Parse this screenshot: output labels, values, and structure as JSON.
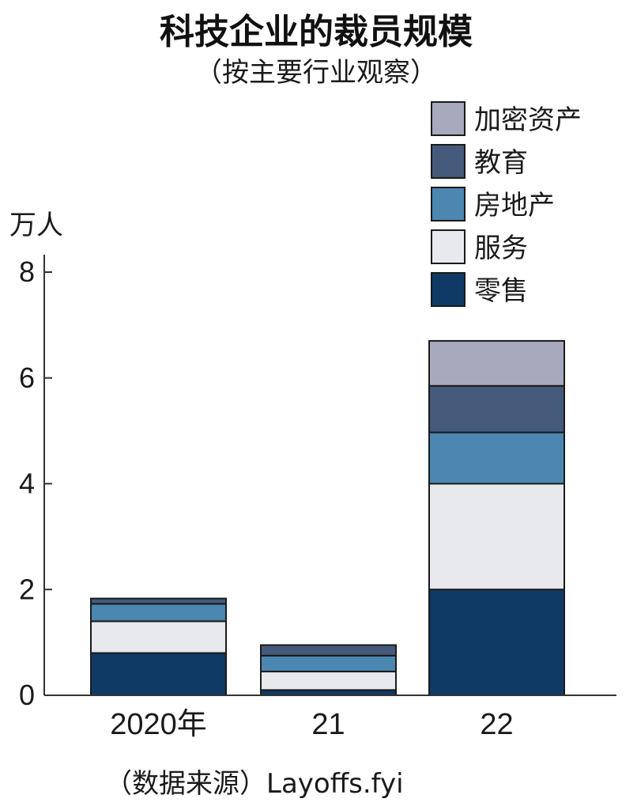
{
  "chart_data": {
    "type": "bar",
    "stacked": true,
    "title": "科技企业的裁员规模",
    "subtitle": "（按主要行业观察）",
    "ylabel": "万人",
    "ylim": [
      0,
      8
    ],
    "yticks": [
      "0",
      "2",
      "4",
      "6",
      "8"
    ],
    "categories": [
      "2020年",
      "21",
      "22"
    ],
    "series": [
      {
        "name": "零售",
        "color": "#103a66",
        "values": [
          0.8,
          0.1,
          2.0
        ]
      },
      {
        "name": "服务",
        "color": "#e8e9ed",
        "values": [
          0.6,
          0.35,
          2.0
        ]
      },
      {
        "name": "房地产",
        "color": "#4b87b1",
        "values": [
          0.33,
          0.3,
          0.97
        ]
      },
      {
        "name": "教育",
        "color": "#455a7a",
        "values": [
          0.1,
          0.2,
          0.88
        ]
      },
      {
        "name": "加密资产",
        "color": "#a7aabd",
        "values": [
          0.0,
          0.0,
          0.85
        ]
      }
    ],
    "legend_order": [
      "加密资产",
      "教育",
      "房地产",
      "服务",
      "零售"
    ],
    "legend_position": "top-right",
    "grid": false,
    "source": "（数据来源）Layoffs.fyi"
  }
}
